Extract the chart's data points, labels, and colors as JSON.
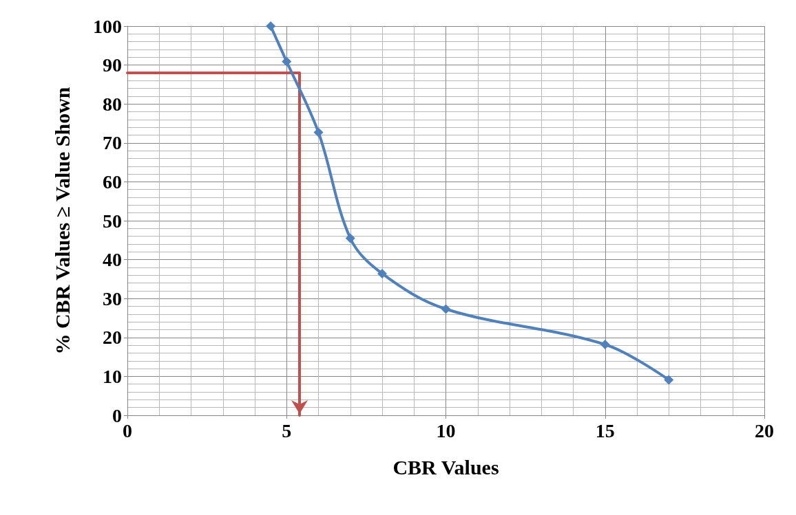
{
  "chart_data": {
    "type": "line",
    "xlabel": "CBR Values",
    "ylabel": "% CBR Values ≥ Value Shown",
    "xlim": [
      0,
      20
    ],
    "xticks": [
      0,
      5,
      10,
      15,
      20
    ],
    "ylim": [
      0,
      100
    ],
    "yticks": [
      0,
      10,
      20,
      30,
      40,
      50,
      60,
      70,
      80,
      90,
      100
    ],
    "grid": true,
    "marker": "diamond",
    "line_style": "solid",
    "series": [
      {
        "color": "#4f81bd",
        "x": [
          4.5,
          5,
          6,
          7,
          8,
          10,
          15,
          17
        ],
        "values": [
          100,
          90.9,
          72.7,
          45.5,
          36.4,
          27.3,
          18.2,
          9.1
        ]
      }
    ],
    "ref_lines": [
      {
        "axis": "y",
        "value": 88,
        "color": "#c0504d"
      },
      {
        "axis": "x",
        "value": 5.4,
        "color": "#c0504d"
      }
    ]
  }
}
